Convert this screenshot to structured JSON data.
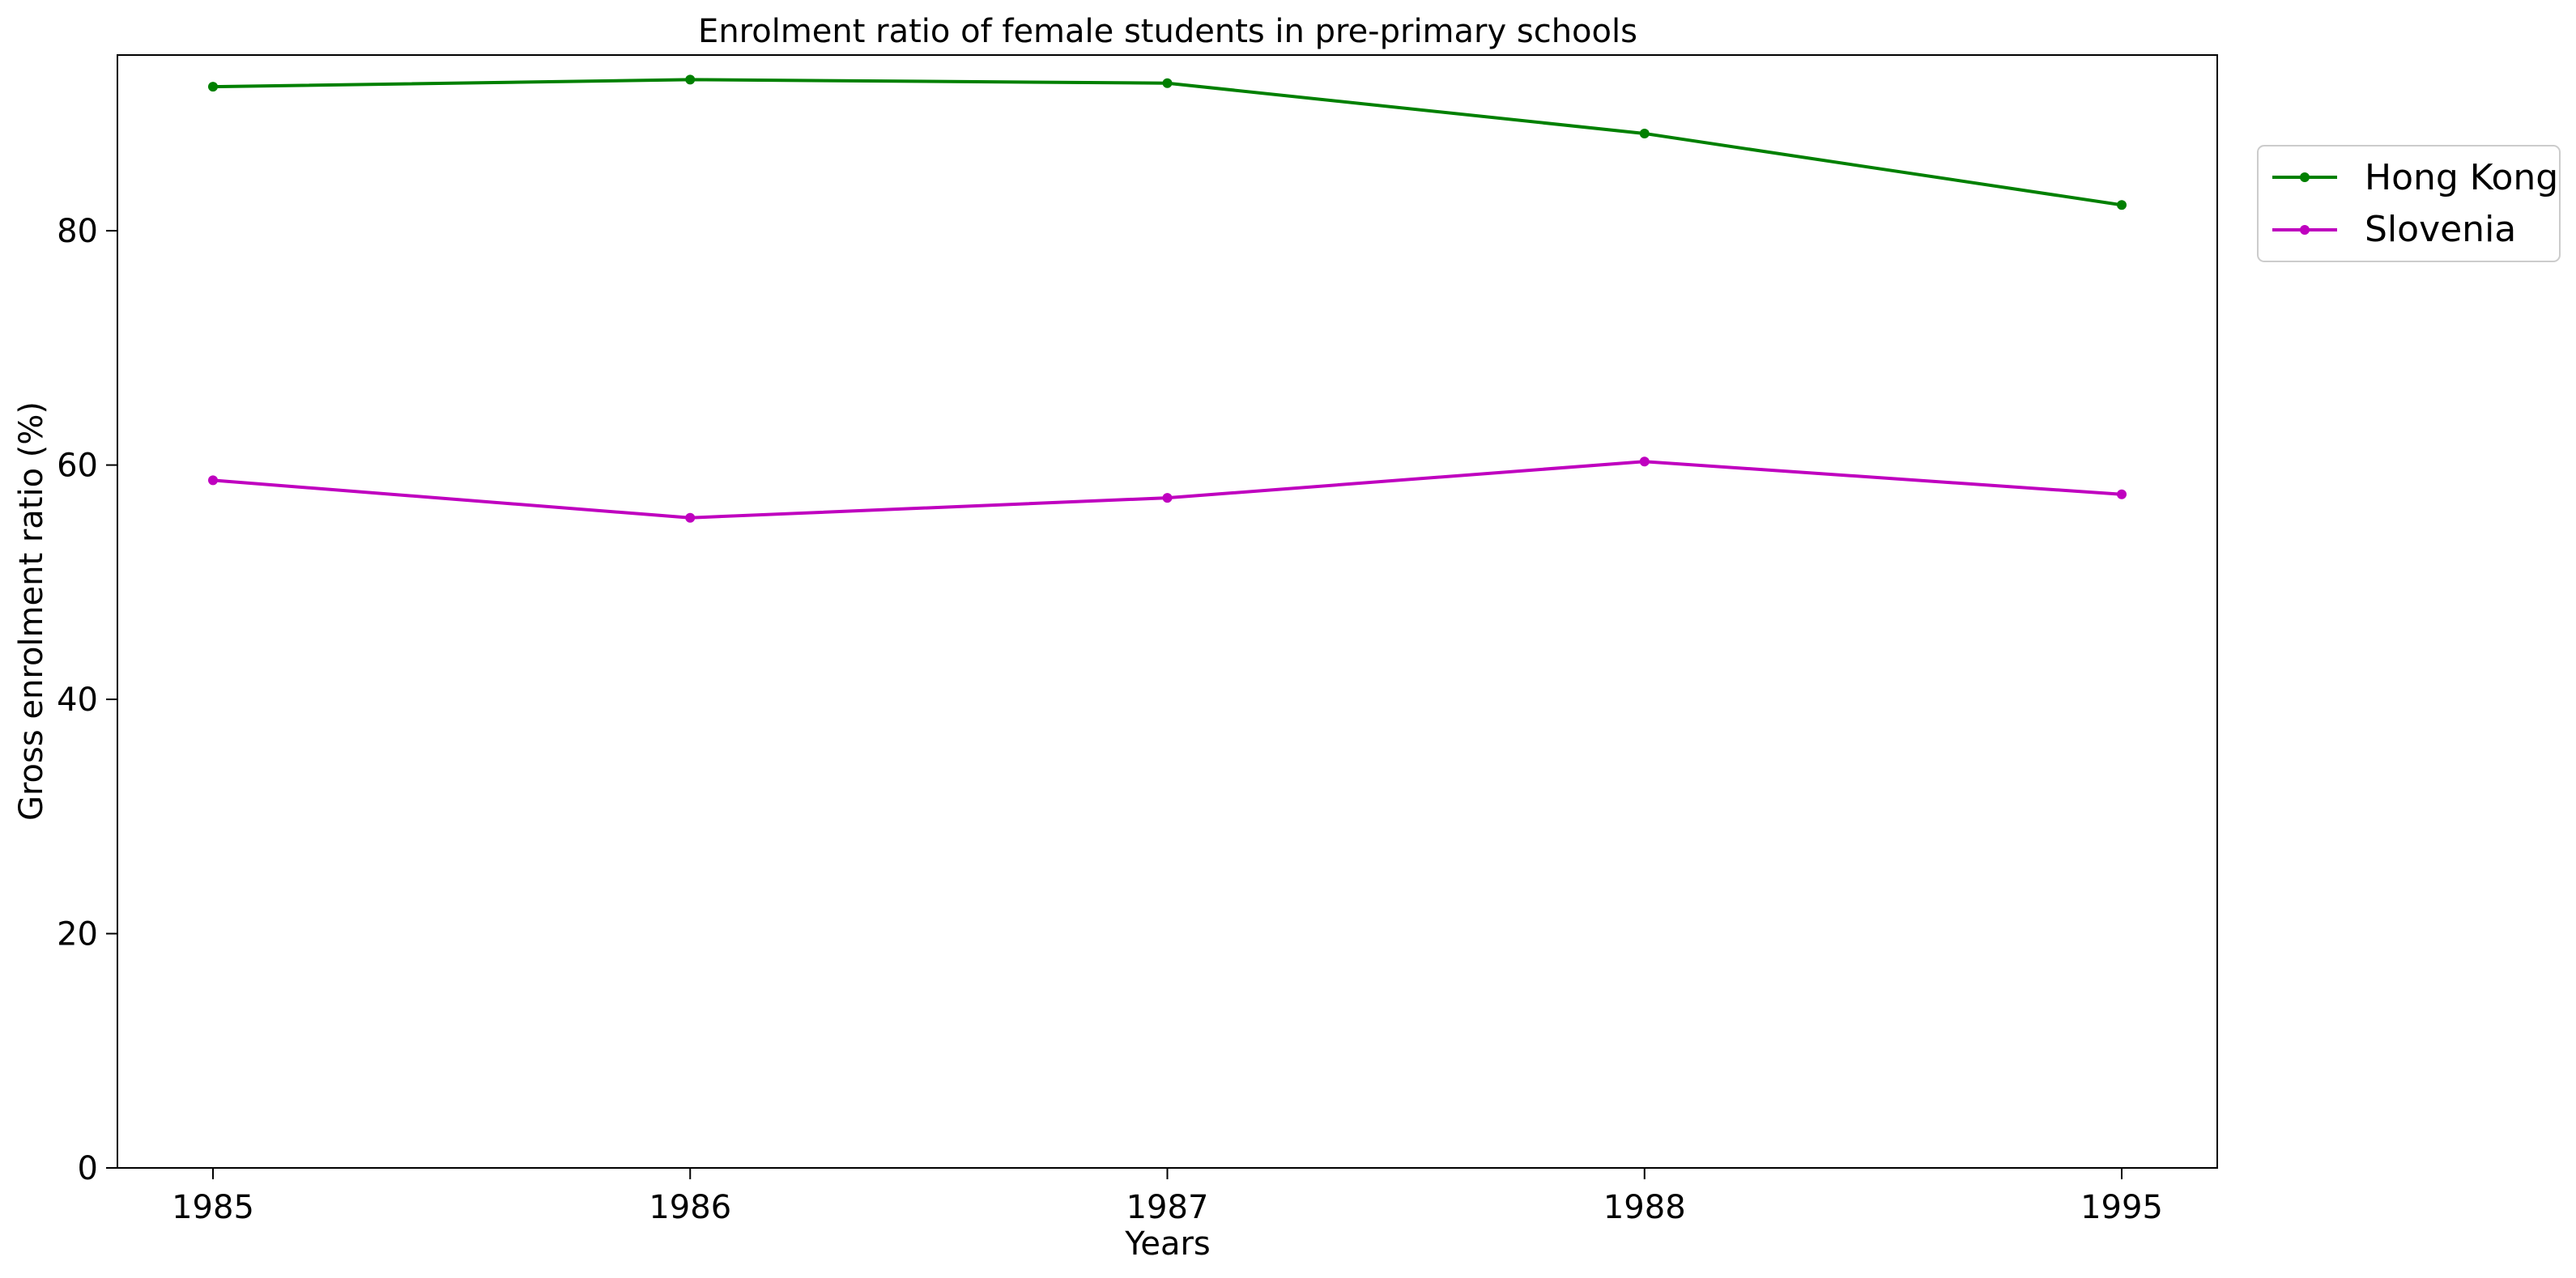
{
  "chart_data": {
    "type": "line",
    "title": "Enrolment ratio of female students in pre-primary schools",
    "xlabel": "Years",
    "ylabel": "Gross enrolment ratio (%)",
    "categories": [
      "1985",
      "1986",
      "1987",
      "1988",
      "1995"
    ],
    "ylim": [
      0,
      95
    ],
    "yticks": [
      0,
      20,
      40,
      60,
      80
    ],
    "grid": false,
    "legend_position": "right, outside plot, top",
    "series": [
      {
        "name": "Hong Kong",
        "color": "#008000",
        "values": [
          92.3,
          92.9,
          92.6,
          88.3,
          82.2
        ]
      },
      {
        "name": "Slovenia",
        "color": "#bf00bf",
        "values": [
          58.7,
          55.5,
          57.2,
          60.3,
          57.5
        ]
      }
    ]
  }
}
